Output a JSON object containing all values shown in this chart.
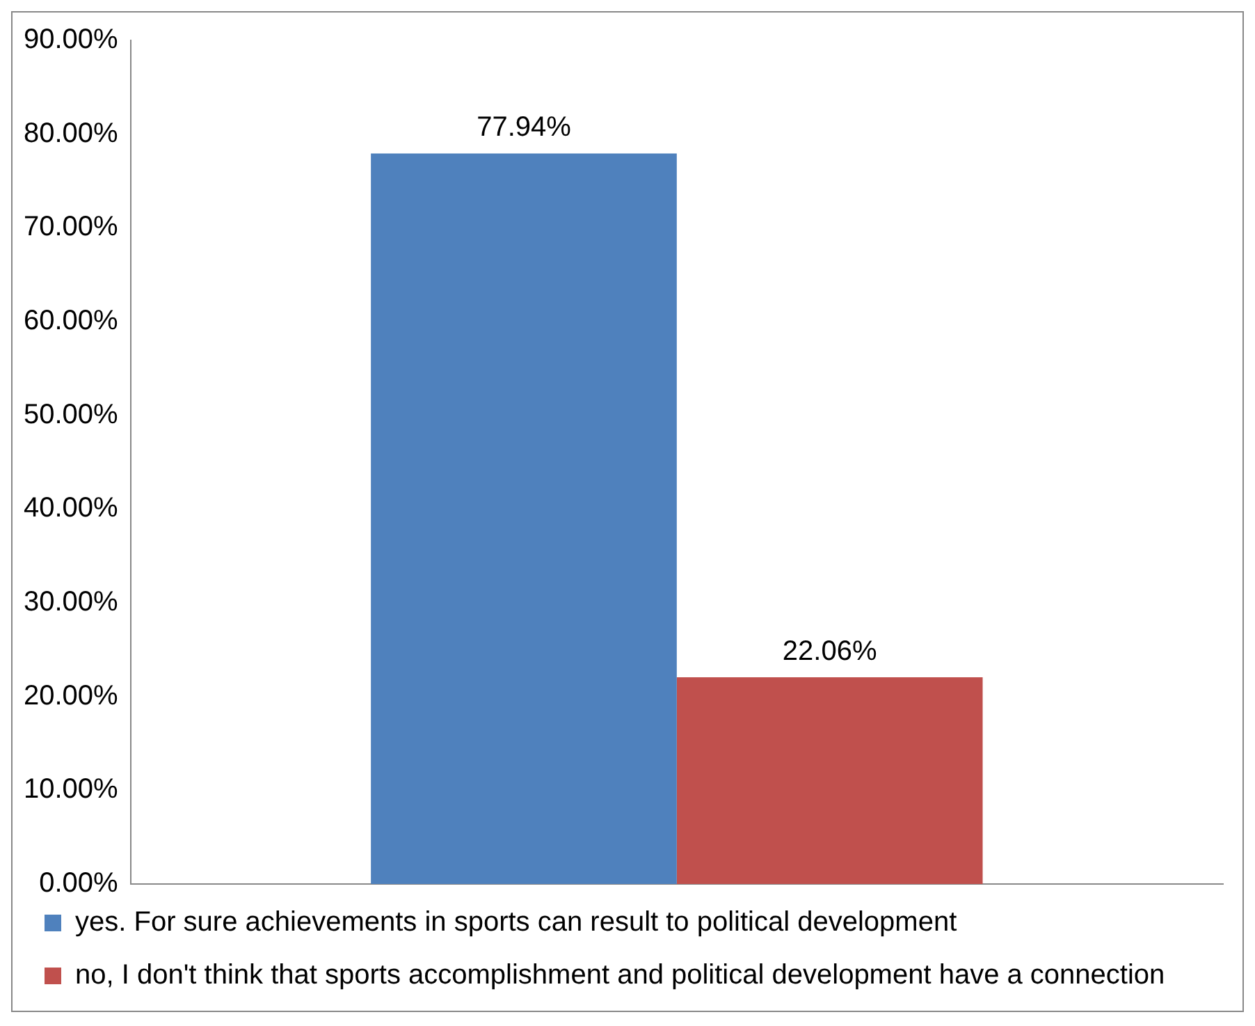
{
  "chart_data": {
    "type": "bar",
    "categories": [
      null
    ],
    "series": [
      {
        "name": "yes. For sure achievements in sports can result to political development",
        "color": "#4f81bd",
        "values": [
          77.94
        ],
        "value_labels": [
          "77.94%"
        ]
      },
      {
        "name": "no, I don't think that sports accomplishment and political development have a connection",
        "color": "#c0504d",
        "values": [
          22.06
        ],
        "value_labels": [
          "22.06%"
        ]
      }
    ],
    "ylim": [
      0,
      90
    ],
    "yticks": [
      {
        "value": 0,
        "label": "0.00%"
      },
      {
        "value": 10,
        "label": "10.00%"
      },
      {
        "value": 20,
        "label": "20.00%"
      },
      {
        "value": 30,
        "label": "30.00%"
      },
      {
        "value": 40,
        "label": "40.00%"
      },
      {
        "value": 50,
        "label": "50.00%"
      },
      {
        "value": 60,
        "label": "60.00%"
      },
      {
        "value": 70,
        "label": "70.00%"
      },
      {
        "value": 80,
        "label": "80.00%"
      },
      {
        "value": 90,
        "label": "90.00%"
      }
    ],
    "grid": false,
    "legend": "bottom"
  }
}
